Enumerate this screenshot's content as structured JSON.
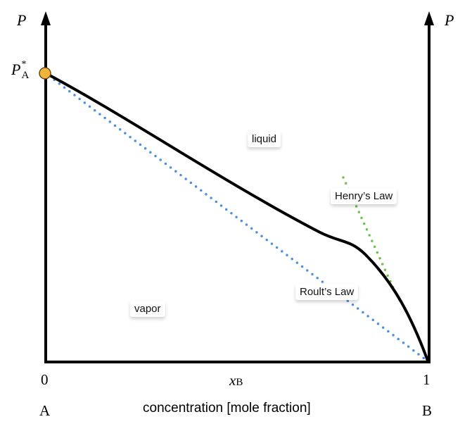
{
  "axes": {
    "left_label": "P",
    "right_label": "P",
    "p_star_main": "P",
    "p_star_sub": "A",
    "p_star_sup": "*",
    "x_start_tick": "0",
    "x_end_tick": "1",
    "x_label_main": "x",
    "x_label_sub": "B",
    "component_left": "A",
    "component_right": "B",
    "x_caption": "concentration [mole fraction]"
  },
  "regions": {
    "liquid": "liquid",
    "vapor": "vapor"
  },
  "laws": {
    "henry": "Henry’s Law",
    "roult": "Roult’s Law"
  },
  "colors": {
    "axis": "#000000",
    "curve": "#000000",
    "roult_line": "#4a90e2",
    "henry_line": "#6cc24a",
    "point_fill": "#f2b33d",
    "point_stroke": "#6b4a10"
  }
}
